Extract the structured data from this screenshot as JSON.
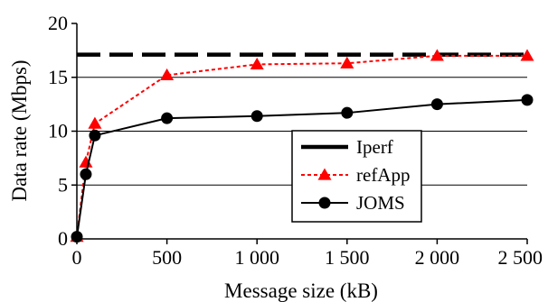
{
  "chart_data": {
    "type": "line",
    "title": "",
    "xlabel": "Message size (kB)",
    "ylabel": "Data rate (Mbps)",
    "xlim": [
      0,
      2500
    ],
    "ylim": [
      0,
      20
    ],
    "x_ticks": [
      0,
      500,
      1000,
      1500,
      2000,
      2500
    ],
    "x_tick_labels": [
      "0",
      "500",
      "1 000",
      "1 500",
      "2 000",
      "2 500"
    ],
    "y_ticks": [
      0,
      5,
      10,
      15,
      20
    ],
    "y_tick_labels": [
      "0",
      "5",
      "10",
      "15",
      "20"
    ],
    "grid": "horizontal lines at 5, 10, 15",
    "legend_position": "center-right",
    "series": [
      {
        "name": "Iperf",
        "style": "dashed",
        "marker": "none",
        "color": "#000000",
        "x": [
          0,
          2500
        ],
        "y": [
          17.1,
          17.1
        ]
      },
      {
        "name": "refApp",
        "style": "dotted",
        "marker": "triangle",
        "color": "#ff0000",
        "x": [
          0,
          50,
          100,
          500,
          1000,
          1500,
          2000,
          2500
        ],
        "y": [
          0.2,
          7.1,
          10.7,
          15.2,
          16.2,
          16.3,
          17.0,
          17.0
        ]
      },
      {
        "name": "JOMS",
        "style": "solid",
        "marker": "circle",
        "color": "#000000",
        "x": [
          0,
          50,
          100,
          500,
          1000,
          1500,
          2000,
          2500
        ],
        "y": [
          0.2,
          6.0,
          9.6,
          11.2,
          11.4,
          11.7,
          12.5,
          12.9
        ]
      }
    ]
  }
}
